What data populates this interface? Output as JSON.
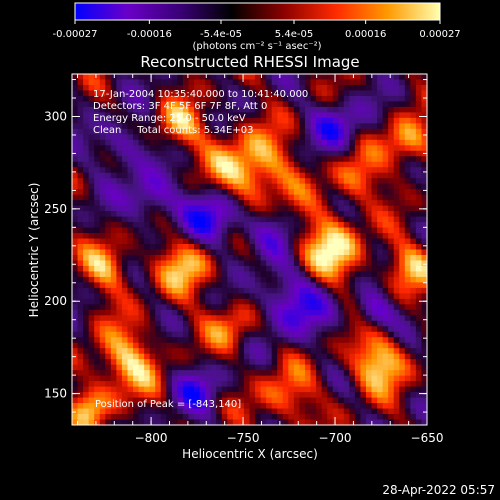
{
  "colorbar": {
    "tick_labels": [
      "-0.00027",
      "-0.00016",
      "-5.4e-05",
      "5.4e-05",
      "0.00016",
      "0.00027"
    ],
    "tick_values": [
      -0.00027,
      -0.00016,
      -5.4e-05,
      5.4e-05,
      0.00016,
      0.00027
    ],
    "range": [
      -0.00027,
      0.00027
    ],
    "units_label": "(photons cm⁻² s⁻¹ asec⁻²)",
    "colors": [
      "#0000ff",
      "#6a00c8",
      "#3a0078",
      "#000000",
      "#8b0000",
      "#ff2a00",
      "#ff9a00",
      "#ffffb0"
    ]
  },
  "chart_data": {
    "type": "heatmap",
    "title": "Reconstructed RHESSI Image",
    "xlabel": "Heliocentric X (arcsec)",
    "ylabel": "Heliocentric Y (arcsec)",
    "xlim": [
      -843,
      -650
    ],
    "ylim": [
      133,
      323
    ],
    "x_ticks": [
      -800,
      -750,
      -700,
      -650
    ],
    "x_tick_labels": [
      "−800",
      "−750",
      "−700",
      "−650"
    ],
    "y_ticks": [
      150,
      200,
      250,
      300
    ],
    "y_tick_labels": [
      "150",
      "200",
      "250",
      "300"
    ],
    "annotations": [
      "17-Jan-2004 10:35:40.000 to 10:41:40.000",
      "Detectors: 3F 4F 5F 6F 7F 8F, Att 0",
      "Energy Range: 25.0 - 50.0 keV",
      "Clean     Total counts: 5.34E+03"
    ],
    "peak_label": "Position of Peak = [-843,140]",
    "grid": false,
    "colormap": "RHESSI blue-black-red-yellow"
  },
  "footer": {
    "timestamp": "28-Apr-2022 05:57"
  }
}
